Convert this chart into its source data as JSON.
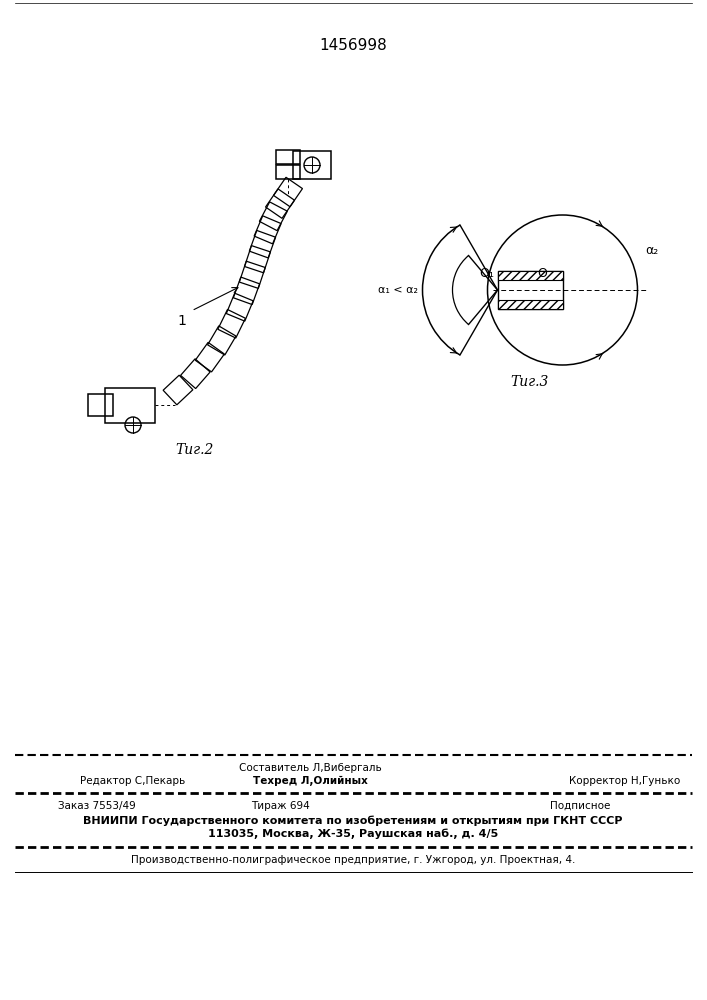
{
  "patent_number": "1456998",
  "fig2_label": "Τиг.2",
  "fig3_label": "Τиг.3",
  "footer_line1_left": "Редактор С,Пекарь",
  "footer_line1_center_top": "Составитель Л,Вибергаль",
  "footer_line1_center_bot": "Техред Л,Олийных",
  "footer_line1_right": "Корректор Н,Гунько",
  "footer_line2_left": "Заказ 7553/49",
  "footer_line2_center": "Тираж 694",
  "footer_line2_right": "Подписное",
  "footer_line3": "ВНИИПИ Государственного комитета по изобретениям и открытиям при ГКНТ СССР",
  "footer_line4": "113035, Москва, Ж-35, Раушская наб., д. 4/5",
  "footer_line5": "Производственно-полиграфическое предприятие, г. Ужгород, ул. Проектная, 4.",
  "bg_color": "#ffffff",
  "text_color": "#000000",
  "line_color": "#000000"
}
